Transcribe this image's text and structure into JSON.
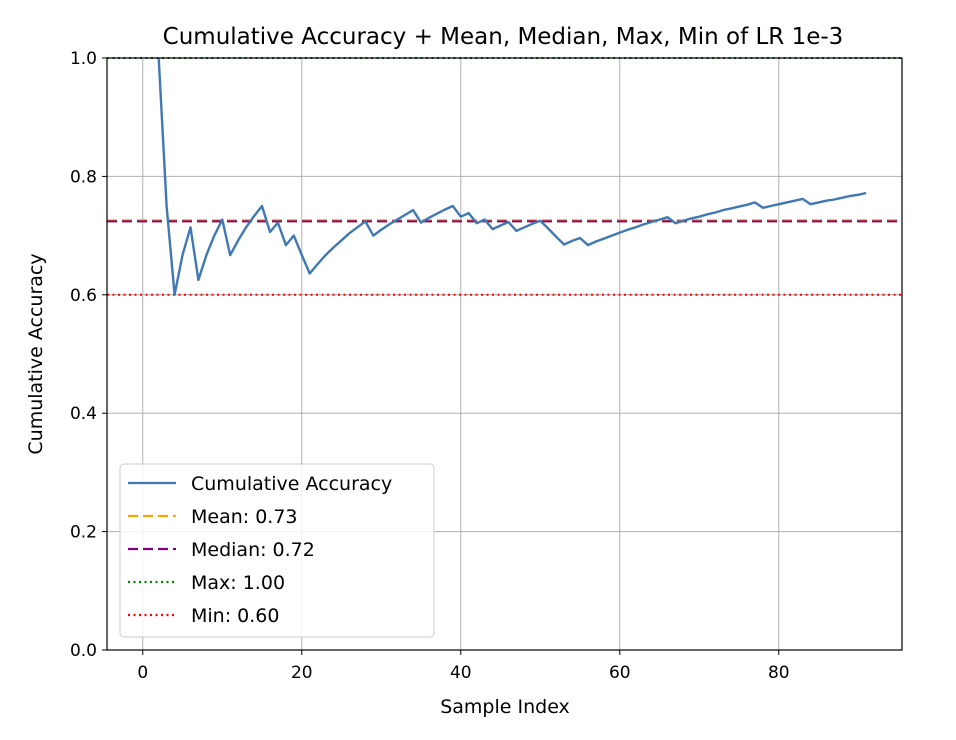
{
  "chart_data": {
    "type": "line",
    "title": "Cumulative Accuracy + Mean, Median, Max, Min of LR 1e-3",
    "xlabel": "Sample Index",
    "ylabel": "Cumulative Accuracy",
    "xlim": [
      -4.5,
      95.5
    ],
    "ylim": [
      0.0,
      1.0
    ],
    "xticks": [
      0,
      20,
      40,
      60,
      80
    ],
    "yticks": [
      0.0,
      0.2,
      0.4,
      0.6,
      0.8,
      1.0
    ],
    "grid": true,
    "legend_position": "lower-left",
    "series": [
      {
        "name": "Cumulative Accuracy",
        "color": "#4078b4",
        "style": "solid",
        "points": [
          [
            2,
            1.0
          ],
          [
            3,
            0.75
          ],
          [
            4,
            0.6
          ],
          [
            5,
            0.667
          ],
          [
            6,
            0.714
          ],
          [
            7,
            0.625
          ],
          [
            8,
            0.667
          ],
          [
            9,
            0.7
          ],
          [
            10,
            0.727
          ],
          [
            11,
            0.667
          ],
          [
            12,
            0.692
          ],
          [
            13,
            0.714
          ],
          [
            14,
            0.733
          ],
          [
            15,
            0.75
          ],
          [
            16,
            0.706
          ],
          [
            17,
            0.722
          ],
          [
            18,
            0.684
          ],
          [
            19,
            0.7
          ],
          [
            20,
            0.667
          ],
          [
            21,
            0.636
          ],
          [
            22,
            0.652
          ],
          [
            23,
            0.667
          ],
          [
            24,
            0.68
          ],
          [
            25,
            0.692
          ],
          [
            26,
            0.704
          ],
          [
            27,
            0.714
          ],
          [
            28,
            0.724
          ],
          [
            29,
            0.7
          ],
          [
            30,
            0.71
          ],
          [
            31,
            0.719
          ],
          [
            32,
            0.727
          ],
          [
            33,
            0.735
          ],
          [
            34,
            0.743
          ],
          [
            35,
            0.722
          ],
          [
            36,
            0.73
          ],
          [
            37,
            0.737
          ],
          [
            38,
            0.744
          ],
          [
            39,
            0.75
          ],
          [
            40,
            0.732
          ],
          [
            41,
            0.738
          ],
          [
            42,
            0.721
          ],
          [
            43,
            0.727
          ],
          [
            44,
            0.711
          ],
          [
            45,
            0.717
          ],
          [
            46,
            0.723
          ],
          [
            47,
            0.708
          ],
          [
            48,
            0.714
          ],
          [
            49,
            0.72
          ],
          [
            50,
            0.725
          ],
          [
            51,
            0.712
          ],
          [
            52,
            0.698
          ],
          [
            53,
            0.685
          ],
          [
            54,
            0.691
          ],
          [
            55,
            0.696
          ],
          [
            56,
            0.684
          ],
          [
            57,
            0.69
          ],
          [
            58,
            0.695
          ],
          [
            59,
            0.7
          ],
          [
            60,
            0.705
          ],
          [
            61,
            0.71
          ],
          [
            62,
            0.714
          ],
          [
            63,
            0.719
          ],
          [
            64,
            0.723
          ],
          [
            65,
            0.727
          ],
          [
            66,
            0.731
          ],
          [
            67,
            0.721
          ],
          [
            68,
            0.725
          ],
          [
            69,
            0.729
          ],
          [
            70,
            0.732
          ],
          [
            71,
            0.736
          ],
          [
            72,
            0.739
          ],
          [
            73,
            0.743
          ],
          [
            74,
            0.746
          ],
          [
            75,
            0.749
          ],
          [
            76,
            0.752
          ],
          [
            77,
            0.756
          ],
          [
            78,
            0.747
          ],
          [
            79,
            0.75
          ],
          [
            80,
            0.753
          ],
          [
            81,
            0.756
          ],
          [
            82,
            0.759
          ],
          [
            83,
            0.762
          ],
          [
            84,
            0.753
          ],
          [
            85,
            0.756
          ],
          [
            86,
            0.759
          ],
          [
            87,
            0.761
          ],
          [
            88,
            0.764
          ],
          [
            89,
            0.767
          ],
          [
            90,
            0.769
          ],
          [
            91,
            0.772
          ]
        ]
      },
      {
        "name": "Mean: 0.73",
        "color": "#ffa500",
        "style": "dashed",
        "hline": 0.726
      },
      {
        "name": "Median: 0.72",
        "color": "#800080",
        "style": "dashed",
        "hline": 0.724
      },
      {
        "name": "Max: 1.00",
        "color": "#008000",
        "style": "dotted",
        "hline": 1.0
      },
      {
        "name": "Min: 0.60",
        "color": "#ff0000",
        "style": "dotted",
        "hline": 0.6
      }
    ]
  }
}
